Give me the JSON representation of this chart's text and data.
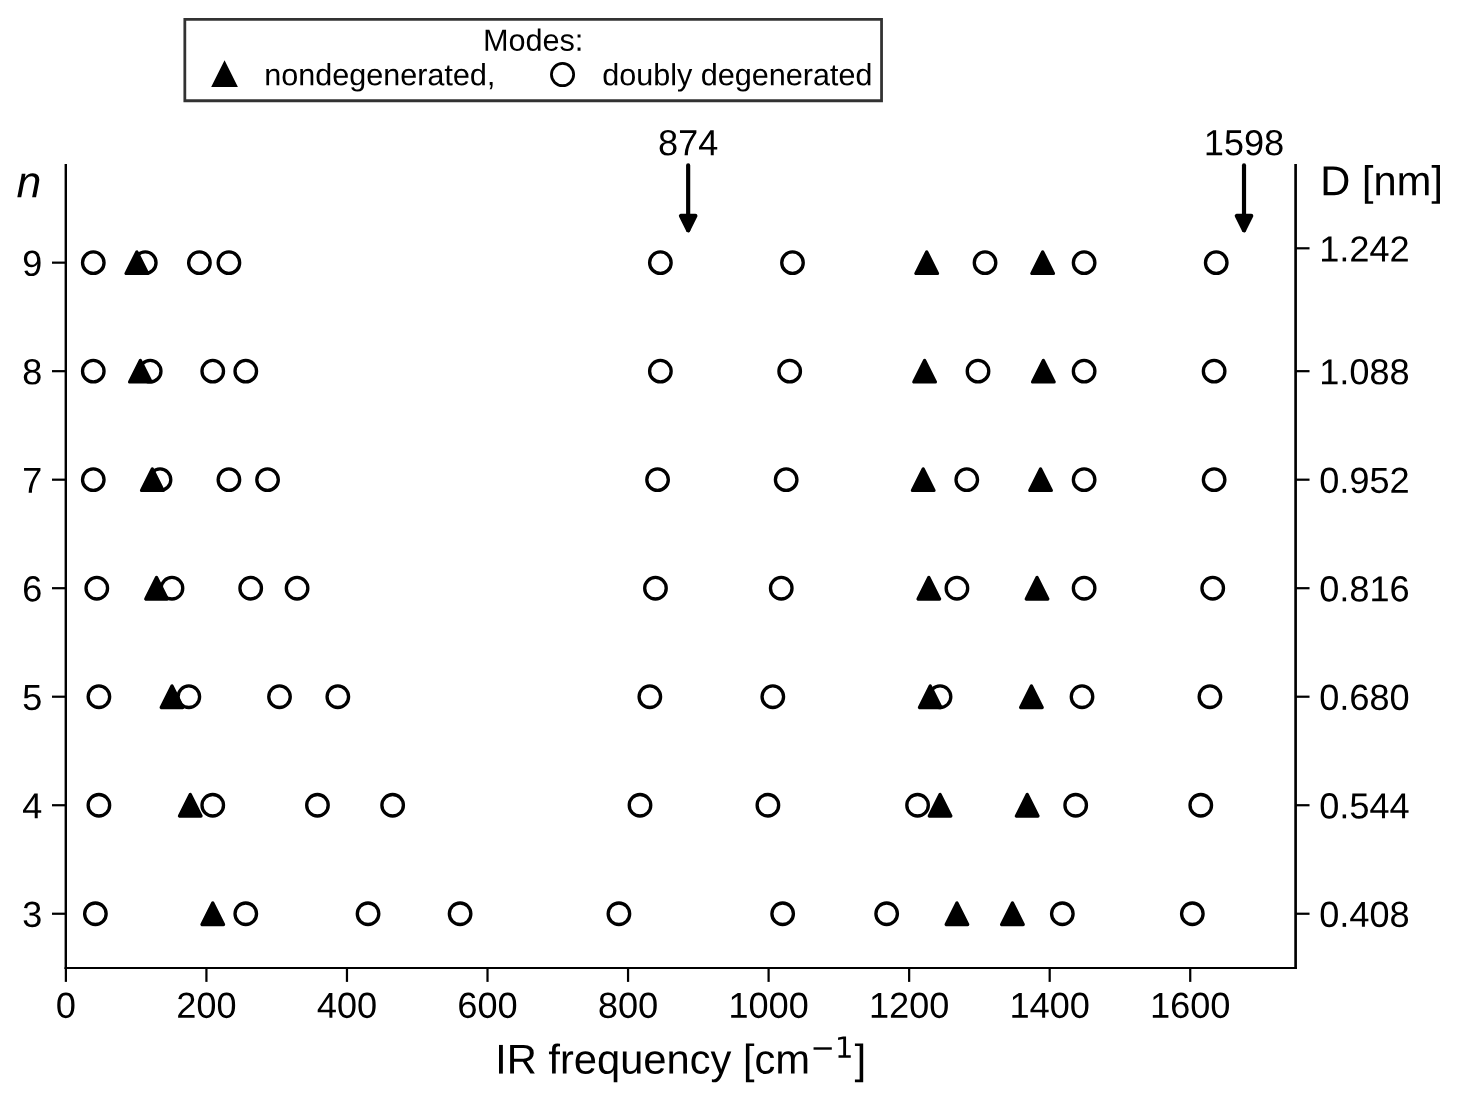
{
  "chart_data": {
    "type": "scatter",
    "xlabel": "IR frequency [cm$^{−1}$]",
    "ylabel": "n",
    "y2label": "D [nm]",
    "legend_title": "Modes:",
    "xlim": [
      0,
      1750
    ],
    "xticks": [
      0,
      200,
      400,
      600,
      800,
      1000,
      1200,
      1400,
      1600
    ],
    "ylim": [
      2.5,
      9.9
    ],
    "yticks": [
      3,
      4,
      5,
      6,
      7,
      8,
      9
    ],
    "y2lim": [
      0.34,
      1.3464
    ],
    "y2ticks": [
      {
        "value": 0.408,
        "label": "0.408"
      },
      {
        "value": 0.544,
        "label": "0.544"
      },
      {
        "value": 0.68,
        "label": "0.680"
      },
      {
        "value": 0.816,
        "label": "0.816"
      },
      {
        "value": 0.952,
        "label": "0.952"
      },
      {
        "value": 1.088,
        "label": "1.088"
      },
      {
        "value": 1.242,
        "label": "1.242"
      }
    ],
    "legend": "top",
    "grid": false,
    "annotations": [
      {
        "text": "874",
        "x": 846,
        "y": 9
      },
      {
        "text": "1598",
        "x": 1637,
        "y": 9
      }
    ],
    "series": [
      {
        "name": "nondegenerated,",
        "color": "#000000",
        "marker": "triangle",
        "x": [
          101,
          1225,
          1390,
          106,
          1222,
          1391,
          123,
          1220,
          1387,
          129,
          1228,
          1382,
          151,
          1230,
          1374,
          177,
          1244,
          1368,
          209,
          1268,
          1347
        ],
        "values": [
          9,
          9,
          9,
          8,
          8,
          8,
          7,
          7,
          7,
          6,
          6,
          6,
          5,
          5,
          5,
          4,
          4,
          4,
          3,
          3,
          3
        ]
      },
      {
        "name": "doubly degenerated",
        "color": "#000000",
        "marker": "circle",
        "x": [
          39,
          113,
          190,
          232,
          846,
          1034,
          1308,
          1449,
          1637,
          39,
          120,
          209,
          256,
          846,
          1030,
          1298,
          1449,
          1634,
          39,
          134,
          232,
          287,
          842,
          1025,
          1282,
          1449,
          1634,
          44,
          151,
          263,
          329,
          839,
          1018,
          1268,
          1449,
          1632,
          47,
          175,
          304,
          387,
          831,
          1006,
          1244,
          1446,
          1628,
          47,
          209,
          358,
          465,
          817,
          999,
          1212,
          1437,
          1615,
          42,
          256,
          430,
          561,
          787,
          1020,
          1168,
          1418,
          1603
        ],
        "values": [
          9,
          9,
          9,
          9,
          9,
          9,
          9,
          9,
          9,
          8,
          8,
          8,
          8,
          8,
          8,
          8,
          8,
          8,
          7,
          7,
          7,
          7,
          7,
          7,
          7,
          7,
          7,
          6,
          6,
          6,
          6,
          6,
          6,
          6,
          6,
          6,
          5,
          5,
          5,
          5,
          5,
          5,
          5,
          5,
          5,
          4,
          4,
          4,
          4,
          4,
          4,
          4,
          4,
          4,
          3,
          3,
          3,
          3,
          3,
          3,
          3,
          3,
          3
        ]
      }
    ]
  }
}
